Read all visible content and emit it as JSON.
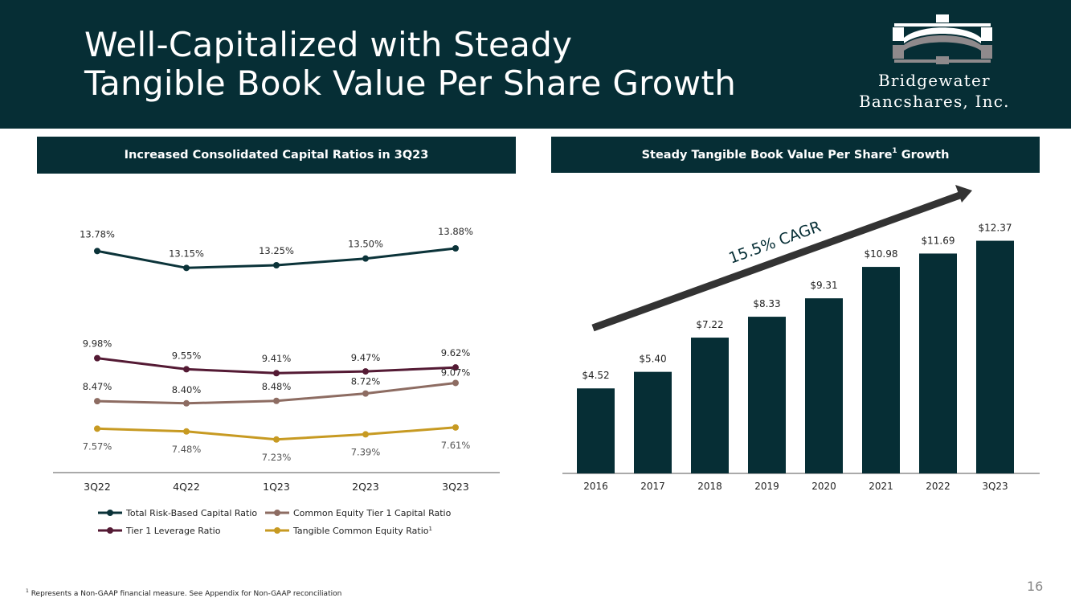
{
  "header": {
    "title_line1": "Well-Capitalized with Steady",
    "title_line2": "Tangible Book Value Per Share Growth",
    "logo_line1": "Bridgewater",
    "logo_line2": "Bancshares, Inc."
  },
  "left_panel": {
    "header": "Increased Consolidated Capital Ratios in 3Q23"
  },
  "right_panel": {
    "header_main": "Steady Tangible Book Value Per Share",
    "header_sup": "1",
    "header_end": " Growth"
  },
  "colors": {
    "navy": "#062e35",
    "total_risk": "#0b3339",
    "tier1": "#541a34",
    "cet1": "#8d6c62",
    "tce": "#c79a22",
    "arrow": "#333333",
    "logo_gray": "#8f8a8c"
  },
  "chart_data": [
    {
      "type": "line",
      "title": "Increased Consolidated Capital Ratios in 3Q23",
      "categories": [
        "3Q22",
        "4Q22",
        "1Q23",
        "2Q23",
        "3Q23"
      ],
      "series": [
        {
          "name": "Total Risk-Based Capital Ratio",
          "values": [
            13.78,
            13.15,
            13.25,
            13.5,
            13.88
          ],
          "labels": [
            "13.78%",
            "13.15%",
            "13.25%",
            "13.50%",
            "13.88%"
          ],
          "color": "#0b3339"
        },
        {
          "name": "Tier 1 Leverage Ratio",
          "values": [
            9.98,
            9.55,
            9.41,
            9.47,
            9.62
          ],
          "labels": [
            "9.98%",
            "9.55%",
            "9.41%",
            "9.47%",
            "9.62%"
          ],
          "color": "#541a34"
        },
        {
          "name": "Common Equity Tier 1 Capital Ratio",
          "values": [
            8.47,
            8.4,
            8.48,
            8.72,
            9.07
          ],
          "labels": [
            "8.47%",
            "8.40%",
            "8.48%",
            "8.72%",
            "9.07%"
          ],
          "color": "#8d6c62"
        },
        {
          "name": "Tangible Common Equity Ratio",
          "name_sup": "1",
          "values": [
            7.57,
            7.48,
            7.23,
            7.39,
            7.61
          ],
          "labels": [
            "7.57%",
            "7.48%",
            "7.23%",
            "7.39%",
            "7.61%"
          ],
          "color": "#c79a22"
        }
      ],
      "grid": false,
      "legend": "bottom"
    },
    {
      "type": "bar",
      "title": "Steady Tangible Book Value Per Share Growth",
      "categories": [
        "2016",
        "2017",
        "2018",
        "2019",
        "2020",
        "2021",
        "2022",
        "3Q23"
      ],
      "values": [
        4.52,
        5.4,
        7.22,
        8.33,
        9.31,
        10.98,
        11.69,
        12.37
      ],
      "labels": [
        "$4.52",
        "$5.40",
        "$7.22",
        "$8.33",
        "$9.31",
        "$10.98",
        "$11.69",
        "$12.37"
      ],
      "color": "#062e35",
      "annotation": "15.5% CAGR",
      "grid": false
    }
  ],
  "footnote": {
    "sup": "1",
    "text": " Represents a Non-GAAP financial measure. See Appendix for Non-GAAP reconciliation"
  },
  "page_number": "16"
}
